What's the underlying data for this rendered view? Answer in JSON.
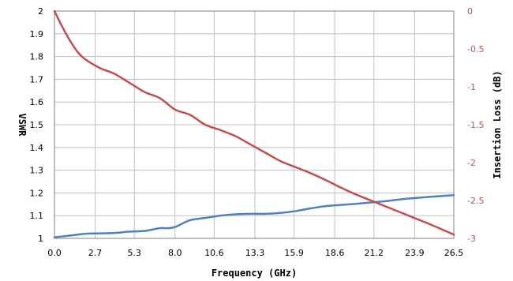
{
  "chart_data": {
    "type": "line",
    "xlabel": "Frequency (GHz)",
    "ylabel_left": "VSWR",
    "ylabel_right": "Insertion Loss (dB)",
    "x_ticks": [
      "0.0",
      "2.7",
      "5.3",
      "8.0",
      "10.6",
      "13.3",
      "15.9",
      "18.6",
      "21.2",
      "23.9",
      "26.5"
    ],
    "y_left_ticks": [
      "1",
      "1.1",
      "1.2",
      "1.3",
      "1.4",
      "1.5",
      "1.6",
      "1.7",
      "1.8",
      "1.9",
      "2"
    ],
    "y_right_ticks": [
      "0",
      "-0.5",
      "-1",
      "-1.5",
      "-2",
      "-2.5",
      "-3"
    ],
    "xlim": [
      0,
      26.5
    ],
    "ylim_left": [
      1,
      2
    ],
    "ylim_right": [
      -3,
      0
    ],
    "grid": true,
    "colors": {
      "vswr": "#4f81bd",
      "insertion_loss": "#c0504d",
      "right_axis_text": "#c0504d",
      "grid": "#c0c0c0"
    },
    "series": [
      {
        "axis": "left",
        "x": [
          0,
          1,
          2,
          3,
          4,
          5,
          6,
          7,
          7.5,
          8,
          9,
          10,
          11,
          12,
          13,
          14,
          15,
          16,
          17,
          18,
          19,
          20,
          21,
          22,
          23,
          24,
          25,
          26.5
        ],
        "values": [
          1.005,
          1.012,
          1.02,
          1.022,
          1.024,
          1.03,
          1.033,
          1.045,
          1.045,
          1.05,
          1.08,
          1.09,
          1.1,
          1.106,
          1.108,
          1.108,
          1.112,
          1.12,
          1.132,
          1.142,
          1.147,
          1.152,
          1.158,
          1.164,
          1.172,
          1.178,
          1.183,
          1.19
        ]
      },
      {
        "axis": "right",
        "x": [
          0,
          0.5,
          1,
          1.5,
          2,
          3,
          4,
          5,
          6,
          7,
          8,
          9,
          10,
          11,
          12,
          13,
          14,
          15,
          16,
          17,
          18,
          19,
          20,
          21,
          22,
          23,
          24,
          25,
          26.5
        ],
        "values": [
          0,
          -0.2,
          -0.38,
          -0.53,
          -0.63,
          -0.75,
          -0.83,
          -0.95,
          -1.07,
          -1.15,
          -1.3,
          -1.37,
          -1.5,
          -1.57,
          -1.65,
          -1.76,
          -1.87,
          -1.98,
          -2.06,
          -2.14,
          -2.23,
          -2.33,
          -2.42,
          -2.5,
          -2.58,
          -2.66,
          -2.74,
          -2.82,
          -2.95
        ]
      }
    ]
  }
}
